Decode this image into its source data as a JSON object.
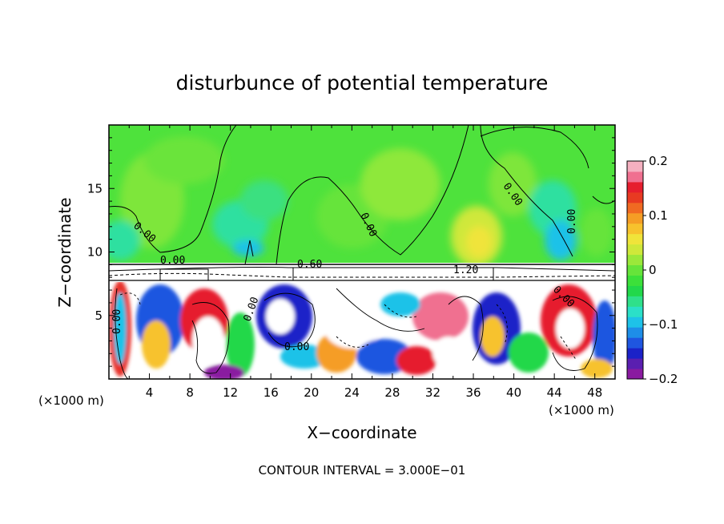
{
  "chart_data": {
    "type": "heatmap",
    "title": "disturbunce of potential temperature",
    "xlabel": "X−coordinate",
    "ylabel": "Z−coordinate",
    "x_unit": "(×1000 m)",
    "x_unit_right": "(×1000 m)",
    "xlim": [
      0,
      50
    ],
    "ylim": [
      0,
      20
    ],
    "x_ticks": [
      4,
      8,
      12,
      16,
      20,
      24,
      28,
      32,
      36,
      40,
      44,
      48
    ],
    "x_tick_labels": [
      "4",
      "8",
      "12",
      "16",
      "20",
      "24",
      "28",
      "32",
      "36",
      "40",
      "44",
      "48"
    ],
    "y_ticks": [
      5,
      10,
      15
    ],
    "y_tick_labels": [
      "5",
      "10",
      "15"
    ],
    "colorbar": {
      "range": [
        -0.2,
        0.2
      ],
      "ticks": [
        -0.2,
        -0.1,
        0,
        0.1,
        0.2
      ],
      "tick_labels": [
        "−0.2",
        "−0.1",
        "0",
        "0.1",
        "0.2"
      ],
      "colors": [
        "#8a1aa0",
        "#5a1fb0",
        "#1b22c8",
        "#1f56e0",
        "#1e8ee8",
        "#1ec2e8",
        "#2be0c8",
        "#2fe08a",
        "#22d84a",
        "#3ce03a",
        "#66e43a",
        "#9be83a",
        "#cfe83a",
        "#f0e43a",
        "#f7c22d",
        "#f59d25",
        "#f06a22",
        "#e83a22",
        "#e61e2e",
        "#f07090",
        "#f5b0c0"
      ]
    },
    "contour_labels": [
      "0.00",
      "0.00",
      "0.00",
      "0.00",
      "0.00",
      "0.00",
      "0.00",
      "0.00",
      "0.00",
      "0.60",
      "1.20"
    ],
    "footer": "CONTOUR INTERVAL = 3.000E−01",
    "grid": false
  }
}
